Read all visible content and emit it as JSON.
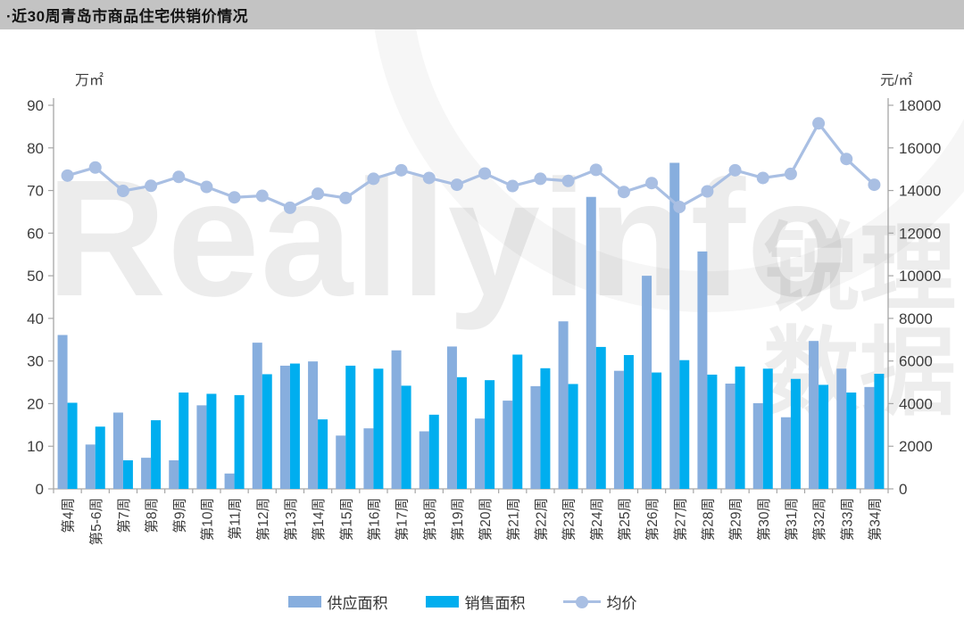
{
  "title": "·近30周青岛市商品住宅供销价情况",
  "watermark": {
    "latin": "Reallyinfo",
    "cjk": "锐理数据"
  },
  "legend": [
    {
      "label": "供应面积",
      "series": "supply",
      "type": "bar"
    },
    {
      "label": "销售面积",
      "series": "sales",
      "type": "bar"
    },
    {
      "label": "均价",
      "series": "price",
      "type": "line"
    }
  ],
  "colors": {
    "supply_bar": "#87aede",
    "sales_bar": "#00aeef",
    "price_line": "#a9bfe3",
    "axis_line": "#a6a6a6",
    "tick_text": "#3d3d3d",
    "title_bar_bg": "#c3c3c3",
    "title_text": "#141414"
  },
  "chart_data": {
    "type": "bar",
    "subtype": "grouped-bars-with-line",
    "title": "近30周青岛市商品住宅供销价情况",
    "grid": false,
    "legend_position": "bottom",
    "categories": [
      "第4周",
      "第5-6周",
      "第7周",
      "第8周",
      "第9周",
      "第10周",
      "第11周",
      "第12周",
      "第13周",
      "第14周",
      "第15周",
      "第16周",
      "第17周",
      "第18周",
      "第19周",
      "第20周",
      "第21周",
      "第22周",
      "第23周",
      "第24周",
      "第25周",
      "第26周",
      "第27周",
      "第28周",
      "第29周",
      "第30周",
      "第31周",
      "第32周",
      "第33周",
      "第34周"
    ],
    "series": [
      {
        "name": "供应面积",
        "type": "bar",
        "axis": "left",
        "values": [
          36.1,
          10.4,
          17.9,
          7.3,
          6.7,
          19.6,
          3.6,
          34.3,
          28.9,
          29.9,
          12.5,
          14.2,
          32.5,
          13.5,
          33.4,
          16.5,
          20.7,
          24.1,
          39.3,
          68.5,
          27.7,
          50.0,
          76.5,
          55.7,
          24.7,
          20.1,
          16.8,
          34.7,
          28.2,
          23.9
        ]
      },
      {
        "name": "销售面积",
        "type": "bar",
        "axis": "left",
        "values": [
          20.2,
          14.6,
          6.7,
          16.1,
          22.6,
          22.3,
          22.0,
          26.9,
          29.4,
          16.3,
          28.9,
          28.2,
          24.2,
          17.4,
          26.2,
          25.5,
          31.5,
          28.3,
          24.6,
          33.3,
          31.4,
          27.3,
          30.2,
          26.8,
          28.7,
          28.2,
          25.8,
          24.4,
          22.6,
          27.0
        ]
      },
      {
        "name": "均价",
        "type": "line",
        "axis": "right",
        "values": [
          14700,
          15080,
          13980,
          14220,
          14640,
          14170,
          13680,
          13750,
          13190,
          13850,
          13650,
          14550,
          14950,
          14590,
          14270,
          14800,
          14210,
          14550,
          14450,
          14970,
          13930,
          14350,
          13230,
          13960,
          14950,
          14590,
          14780,
          17150,
          15480,
          14270
        ]
      }
    ],
    "left_axis": {
      "unit": "万㎡",
      "min": 0,
      "max": 90,
      "step": 10,
      "tick_labels": [
        "0",
        "10",
        "20",
        "30",
        "40",
        "50",
        "60",
        "70",
        "80",
        "90"
      ]
    },
    "right_axis": {
      "unit": "元/㎡",
      "min": 0,
      "max": 18000,
      "step": 2000,
      "tick_labels": [
        "0",
        "2000",
        "4000",
        "6000",
        "8000",
        "10000",
        "12000",
        "14000",
        "16000",
        "18000"
      ]
    }
  }
}
